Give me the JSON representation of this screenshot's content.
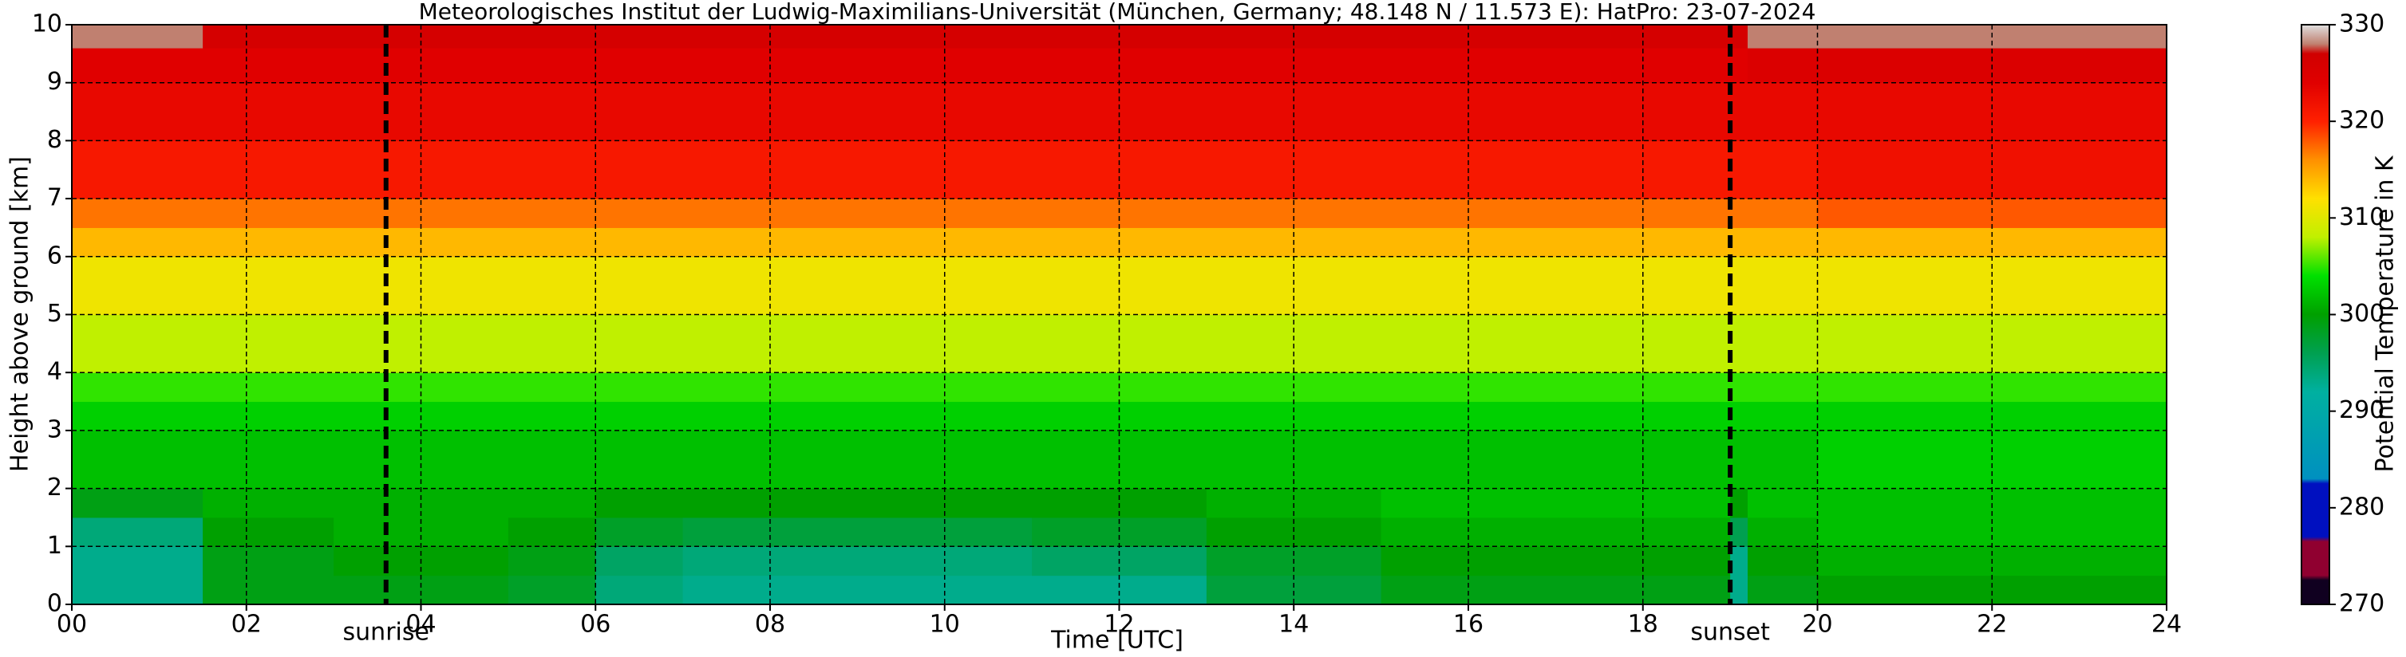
{
  "chart_data": {
    "type": "heatmap",
    "title": "Meteorologisches Institut der Ludwig-Maximilians-Universität (München, Germany; 48.148 N / 11.573 E):    HatPro: 23-07-2024",
    "x_label": "Time [UTC]",
    "y_label": "Height above ground [km]",
    "colorbar_label": "Potential Temperature in K",
    "xlim": [
      0,
      24
    ],
    "ylim": [
      0,
      10
    ],
    "xticks": [
      {
        "value": 0,
        "label": "00"
      },
      {
        "value": 2,
        "label": "02"
      },
      {
        "value": 4,
        "label": "04"
      },
      {
        "value": 6,
        "label": "06"
      },
      {
        "value": 8,
        "label": "08"
      },
      10,
      12,
      14,
      16,
      18,
      20,
      22,
      24
    ],
    "yticks": [
      0,
      1,
      2,
      3,
      4,
      5,
      6,
      7,
      8,
      9,
      10
    ],
    "grid": true,
    "x_edges": [
      0,
      1.5,
      3,
      5,
      6,
      7,
      9,
      11,
      13,
      15,
      17,
      19,
      19.2,
      20,
      22,
      24
    ],
    "y_edges": [
      0,
      0.5,
      1,
      1.5,
      2,
      3,
      3.5,
      4,
      5,
      6,
      6.5,
      7,
      8,
      9,
      9.6,
      10
    ],
    "z": [
      [
        293,
        299,
        299,
        298,
        294,
        293,
        293,
        293,
        297,
        299,
        299,
        293,
        299,
        300,
        300
      ],
      [
        293,
        299,
        300,
        299,
        295,
        294,
        294,
        295,
        298,
        300,
        300,
        293,
        300,
        301,
        301
      ],
      [
        294,
        300,
        301,
        300,
        298,
        297,
        297,
        298,
        300,
        301,
        301,
        296,
        301,
        302,
        302
      ],
      [
        299,
        301,
        301,
        301,
        300,
        300,
        300,
        300,
        301,
        302,
        302,
        300,
        302,
        302,
        302
      ],
      [
        302,
        302,
        302,
        302,
        302,
        302,
        302,
        302,
        302,
        302,
        302,
        302,
        302,
        303,
        303
      ],
      [
        303,
        303,
        303,
        303,
        303,
        303,
        303,
        303,
        303,
        303,
        303,
        303,
        303,
        303,
        303
      ],
      [
        305,
        305,
        305,
        305,
        305,
        305,
        305,
        305,
        305,
        305,
        305,
        305,
        305,
        305,
        305
      ],
      [
        308,
        308,
        308,
        308,
        308,
        308,
        308,
        308,
        308,
        308,
        308,
        308,
        308,
        308,
        308
      ],
      [
        311,
        311,
        311,
        311,
        311,
        311,
        311,
        311,
        311,
        311,
        311,
        311,
        311,
        311,
        311
      ],
      [
        314,
        314,
        314,
        314,
        314,
        314,
        314,
        314,
        314,
        314,
        314,
        314,
        314,
        314,
        314
      ],
      [
        317,
        317,
        317,
        317,
        317,
        317,
        317,
        317,
        317,
        317,
        317,
        317,
        317,
        318,
        318
      ],
      [
        321,
        321,
        321,
        321,
        321,
        321,
        321,
        321,
        321,
        321,
        321,
        321,
        321,
        322,
        322
      ],
      [
        323,
        323,
        323,
        323,
        323,
        323,
        323,
        323,
        323,
        323,
        323,
        323,
        323,
        323,
        323
      ],
      [
        324,
        324,
        324,
        324,
        324,
        324,
        324,
        324,
        324,
        324,
        324,
        324,
        325,
        325,
        325
      ],
      [
        328,
        326,
        326,
        326,
        326,
        326,
        326,
        326,
        326,
        326,
        326,
        326,
        328,
        328,
        328
      ]
    ],
    "clim": [
      270,
      330
    ],
    "cticks": [
      270,
      280,
      290,
      300,
      310,
      320,
      330
    ],
    "colorscale": [
      [
        270,
        "#100020"
      ],
      [
        272.5,
        "#100020"
      ],
      [
        273,
        "#900030"
      ],
      [
        276.5,
        "#900030"
      ],
      [
        277,
        "#0010c0"
      ],
      [
        282.5,
        "#0010c0"
      ],
      [
        283,
        "#0090c0"
      ],
      [
        292,
        "#00b0a0"
      ],
      [
        296,
        "#00a050"
      ],
      [
        300,
        "#00a000"
      ],
      [
        304,
        "#00e000"
      ],
      [
        308,
        "#c0f000"
      ],
      [
        312,
        "#ffe000"
      ],
      [
        316,
        "#ff9000"
      ],
      [
        320,
        "#ff2000"
      ],
      [
        324,
        "#e00000"
      ],
      [
        327,
        "#d00000"
      ],
      [
        328,
        "#c08070"
      ],
      [
        330,
        "#e0e0e0"
      ]
    ],
    "vlines": [
      {
        "x": 3.6,
        "label": "sunrise"
      },
      {
        "x": 19.0,
        "label": "sunset"
      }
    ]
  }
}
